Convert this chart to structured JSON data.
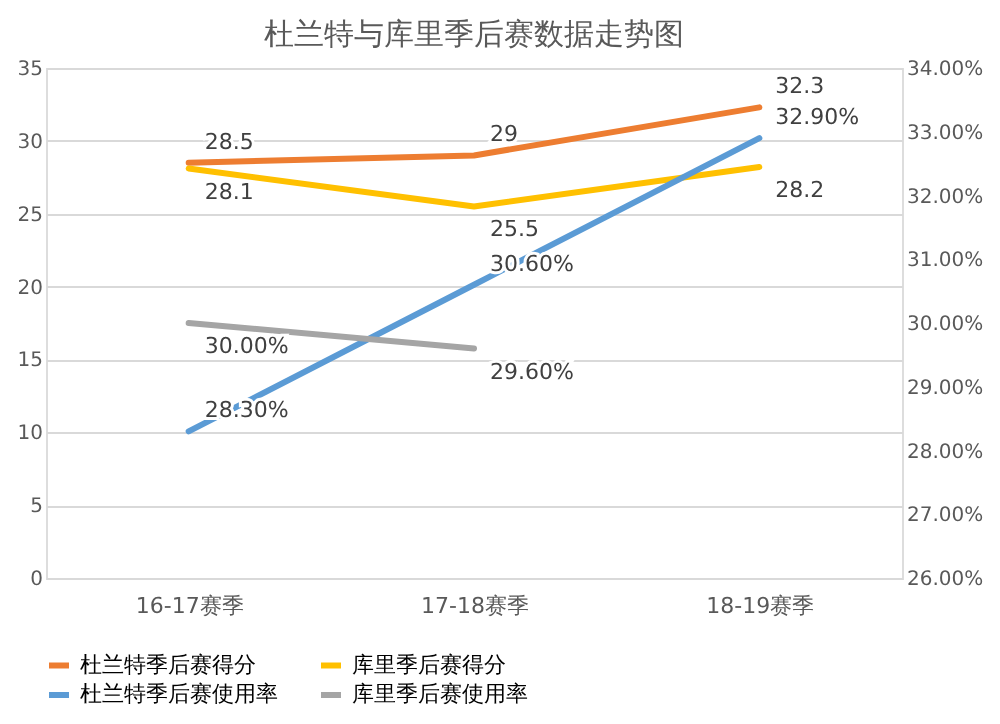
{
  "chart_data": {
    "type": "line",
    "title": "杜兰特与库里季后赛数据走势图",
    "categories": [
      "16-17赛季",
      "17-18赛季",
      "18-19赛季"
    ],
    "series": [
      {
        "name": "杜兰特季后赛得分",
        "color": "#ed7d31",
        "values": [
          28.5,
          29,
          32.3
        ]
      },
      {
        "name": "库里季后赛得分",
        "color": "#ffc000",
        "values": [
          28.1,
          25.5,
          28.2
        ]
      },
      {
        "name": "杜兰特季后赛使用率",
        "color": "#5b9bd5",
        "axis": "y2",
        "values": [
          28.3,
          30.6,
          32.9
        ],
        "value_labels": [
          "28.30%",
          "30.60%",
          "32.90%"
        ]
      },
      {
        "name": "库里季后赛使用率",
        "color": "#a5a5a5",
        "axis": "y2",
        "values": [
          30.0,
          29.6,
          null
        ],
        "value_labels": [
          "30.00%",
          "29.60%",
          null
        ]
      }
    ],
    "ylim": [
      0,
      35
    ],
    "yticks": [
      0,
      5,
      10,
      15,
      20,
      25,
      30,
      35
    ],
    "y2lim": [
      26,
      34
    ],
    "y2ticks": [
      {
        "value": 26,
        "label": "26.00%"
      },
      {
        "value": 27,
        "label": "27.00%"
      },
      {
        "value": 28,
        "label": "28.00%"
      },
      {
        "value": 29,
        "label": "29.00%"
      },
      {
        "value": 30,
        "label": "30.00%"
      },
      {
        "value": 31,
        "label": "31.00%"
      },
      {
        "value": 32,
        "label": "32.00%"
      },
      {
        "value": 33,
        "label": "33.00%"
      },
      {
        "value": 34,
        "label": "34.00%"
      }
    ],
    "data_labels": true,
    "grid": "y",
    "legend": "bottom",
    "marker": "none",
    "line_style": "solid"
  }
}
